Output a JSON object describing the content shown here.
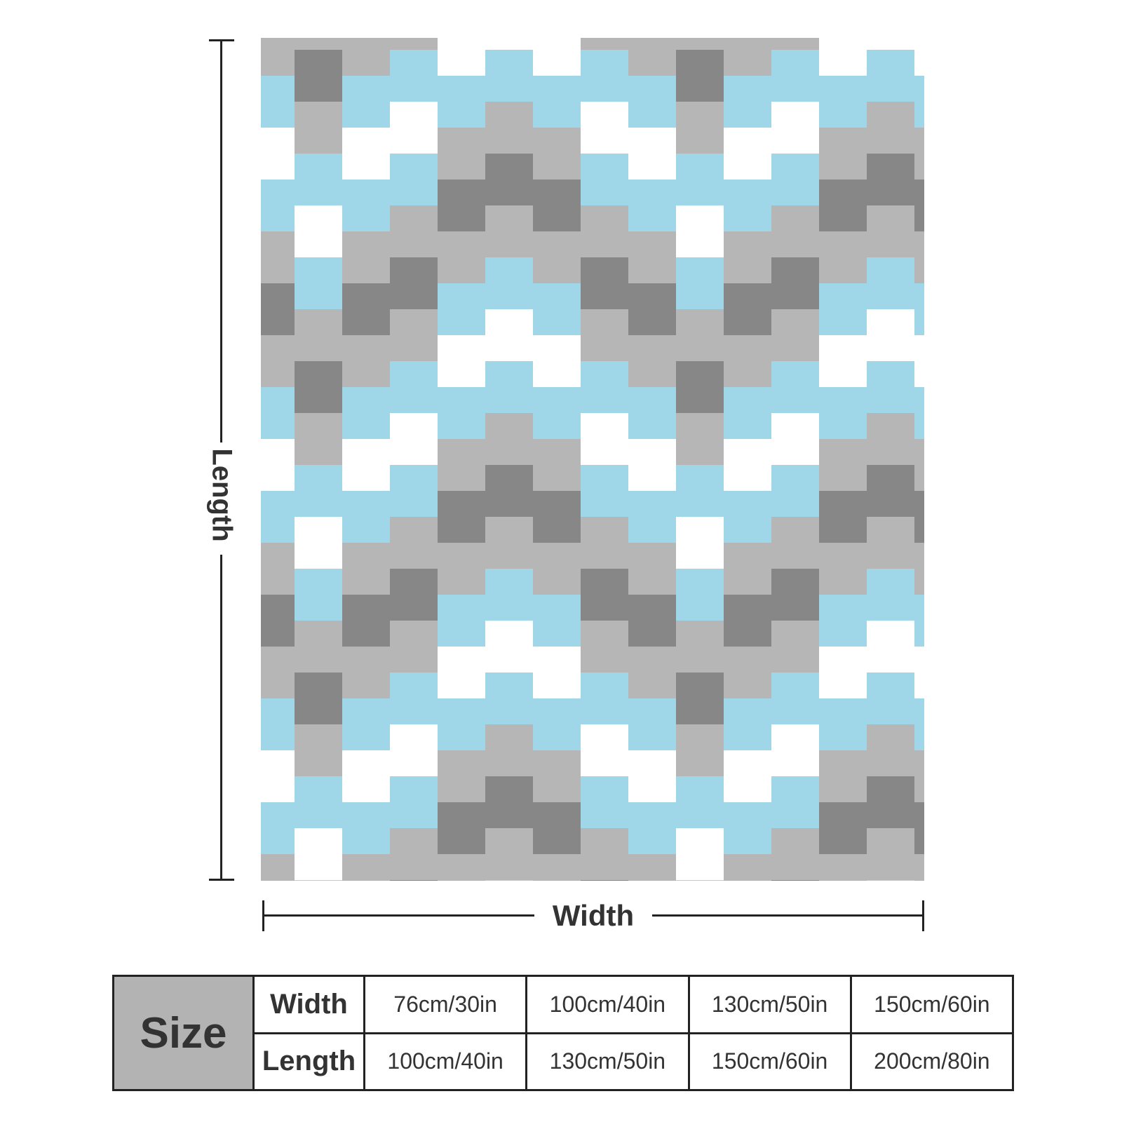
{
  "colors": {
    "dark_gray": "#878787",
    "light_gray": "#b6b6b6",
    "light_blue": "#9fd7e8",
    "white": "#ffffff",
    "line": "#222222",
    "table_header_bg": "#b3b3b3"
  },
  "dimensions": {
    "length_label": "Length",
    "width_label": "Width"
  },
  "size_table": {
    "title": "Size",
    "rows": [
      {
        "label": "Width",
        "values": [
          "76cm/30in",
          "100cm/40in",
          "130cm/50in",
          "150cm/60in"
        ]
      },
      {
        "label": "Length",
        "values": [
          "100cm/40in",
          "130cm/50in",
          "150cm/60in",
          "200cm/80in"
        ]
      }
    ]
  }
}
